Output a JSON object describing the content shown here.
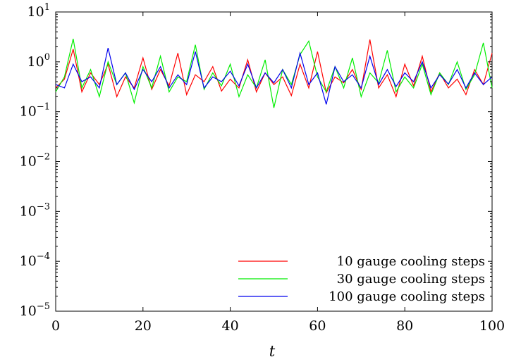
{
  "chart_data": {
    "type": "line",
    "title": "",
    "xlabel": "t",
    "ylabel": "",
    "xlim": [
      0,
      100
    ],
    "ylim": [
      1e-05,
      10
    ],
    "yscale": "log",
    "grid": false,
    "legend_position": "bottom-right",
    "x_ticks": [
      0,
      20,
      40,
      60,
      80,
      100
    ],
    "x_tick_labels": [
      "0",
      "20",
      "40",
      "60",
      "80",
      "100"
    ],
    "y_ticks": [
      {
        "value": 10,
        "base": "10",
        "exp": "1"
      },
      {
        "value": 1,
        "base": "10",
        "exp": "0"
      },
      {
        "value": 0.1,
        "base": "10",
        "exp": "−1"
      },
      {
        "value": 0.01,
        "base": "10",
        "exp": "−2"
      },
      {
        "value": 0.001,
        "base": "10",
        "exp": "−3"
      },
      {
        "value": 0.0001,
        "base": "10",
        "exp": "−4"
      },
      {
        "value": 1e-05,
        "base": "10",
        "exp": "−5"
      }
    ],
    "series": [
      {
        "name": "10 gauge cooling steps",
        "color": "#ff0000",
        "x": [
          0,
          2,
          4,
          6,
          8,
          10,
          12,
          14,
          16,
          18,
          20,
          22,
          24,
          26,
          28,
          30,
          32,
          34,
          36,
          38,
          40,
          42,
          44,
          46,
          48,
          50,
          52,
          54,
          56,
          58,
          60,
          62,
          64,
          66,
          68,
          70,
          72,
          74,
          76,
          78,
          80,
          82,
          84,
          86,
          88,
          90,
          92,
          94,
          96,
          98,
          100
        ],
        "y": [
          0.3,
          0.45,
          1.8,
          0.25,
          0.6,
          0.35,
          0.9,
          0.2,
          0.5,
          0.3,
          1.2,
          0.28,
          0.7,
          0.33,
          1.5,
          0.22,
          0.55,
          0.4,
          0.8,
          0.26,
          0.45,
          0.3,
          1.1,
          0.25,
          0.6,
          0.35,
          0.5,
          0.21,
          0.9,
          0.3,
          1.6,
          0.24,
          0.5,
          0.38,
          0.7,
          0.28,
          2.8,
          0.3,
          0.55,
          0.2,
          0.9,
          0.33,
          1.3,
          0.25,
          0.6,
          0.3,
          0.45,
          0.22,
          0.7,
          0.35,
          1.5
        ]
      },
      {
        "name": "30 gauge cooling steps",
        "color": "#00ee00",
        "x": [
          0,
          2,
          4,
          6,
          8,
          10,
          12,
          14,
          16,
          18,
          20,
          22,
          24,
          26,
          28,
          30,
          32,
          34,
          36,
          38,
          40,
          42,
          44,
          46,
          48,
          50,
          52,
          54,
          56,
          58,
          60,
          62,
          64,
          66,
          68,
          70,
          72,
          74,
          76,
          78,
          80,
          82,
          84,
          86,
          88,
          90,
          92,
          94,
          96,
          98,
          100
        ],
        "y": [
          0.25,
          0.5,
          2.9,
          0.3,
          0.7,
          0.2,
          1.0,
          0.35,
          0.6,
          0.15,
          0.8,
          0.3,
          1.3,
          0.25,
          0.5,
          0.4,
          2.2,
          0.28,
          0.6,
          0.33,
          0.9,
          0.2,
          0.55,
          0.3,
          1.1,
          0.12,
          0.7,
          0.35,
          1.4,
          2.6,
          0.5,
          0.25,
          0.8,
          0.3,
          1.2,
          0.2,
          0.6,
          0.38,
          1.7,
          0.25,
          0.5,
          0.3,
          0.9,
          0.22,
          0.6,
          0.35,
          1.0,
          0.28,
          0.55,
          2.4,
          0.3
        ]
      },
      {
        "name": "100 gauge cooling steps",
        "color": "#0000ee",
        "x": [
          0,
          2,
          4,
          6,
          8,
          10,
          12,
          14,
          16,
          18,
          20,
          22,
          24,
          26,
          28,
          30,
          32,
          34,
          36,
          38,
          40,
          42,
          44,
          46,
          48,
          50,
          52,
          54,
          56,
          58,
          60,
          62,
          64,
          66,
          68,
          70,
          72,
          74,
          76,
          78,
          80,
          82,
          84,
          86,
          88,
          90,
          92,
          94,
          96,
          98,
          100
        ],
        "y": [
          0.35,
          0.3,
          0.9,
          0.4,
          0.5,
          0.3,
          1.9,
          0.35,
          0.6,
          0.28,
          0.7,
          0.4,
          0.8,
          0.3,
          0.55,
          0.35,
          1.6,
          0.3,
          0.5,
          0.4,
          0.65,
          0.33,
          0.9,
          0.3,
          0.6,
          0.38,
          0.7,
          0.3,
          1.5,
          0.35,
          0.6,
          0.14,
          0.8,
          0.4,
          0.55,
          0.3,
          1.3,
          0.35,
          0.7,
          0.32,
          0.6,
          0.4,
          1.0,
          0.3,
          0.55,
          0.36,
          0.7,
          0.3,
          0.6,
          0.35,
          0.5
        ]
      }
    ]
  }
}
